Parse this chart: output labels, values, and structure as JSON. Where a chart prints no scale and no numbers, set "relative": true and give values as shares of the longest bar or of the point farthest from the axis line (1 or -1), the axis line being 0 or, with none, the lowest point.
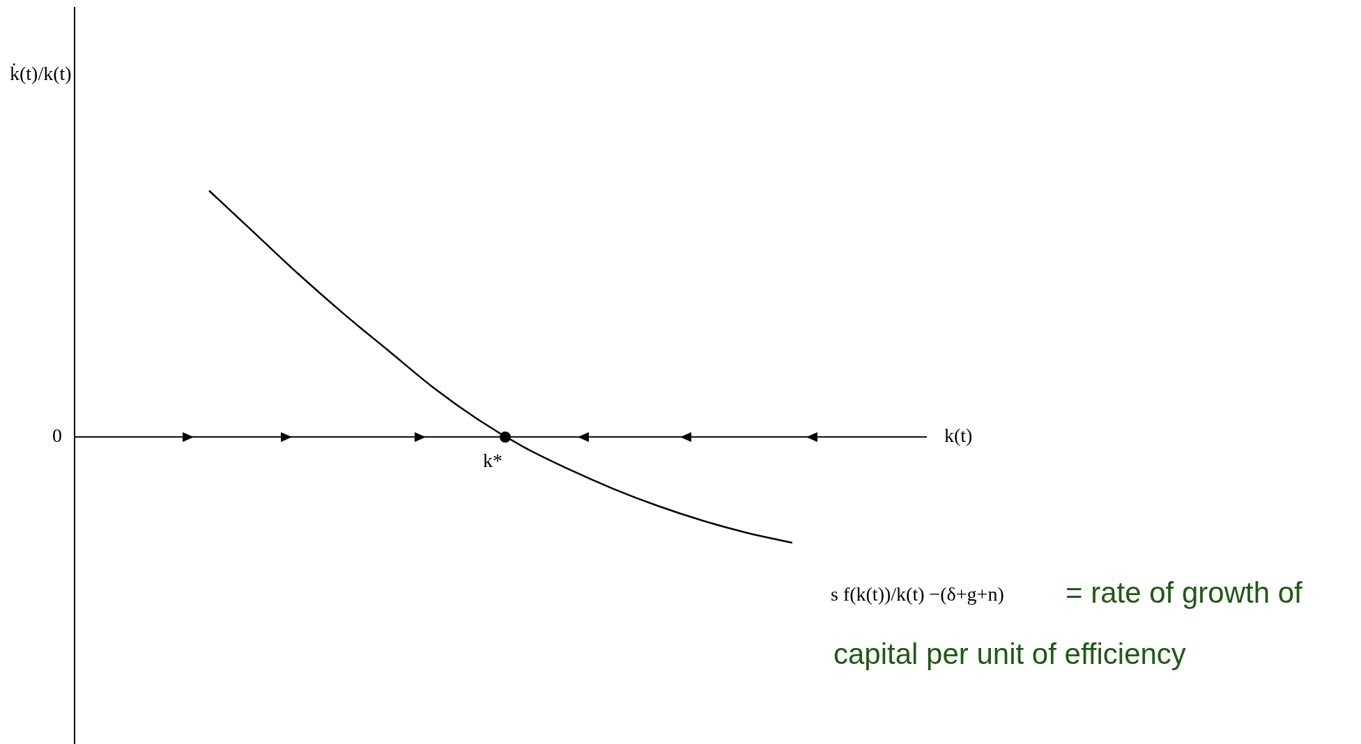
{
  "chart_data": {
    "type": "line",
    "relative": true,
    "xlabel": "k(t)",
    "categories": [
      null,
      null,
      null,
      null,
      null,
      null,
      null,
      null,
      null,
      null,
      null,
      null,
      null,
      null,
      null,
      null,
      null,
      null,
      null,
      null
    ],
    "series": [
      {
        "color": "#000000",
        "values": [
          null,
          null,
          null,
          1,
          0.83,
          0.66,
          0.5,
          0.35,
          0.2,
          0.07,
          -0.04,
          -0.13,
          -0.21,
          -0.28,
          -0.34,
          -0.39,
          -0.43,
          null,
          null,
          null
        ]
      }
    ],
    "annotations": [
      "0",
      "k*",
      "s f(k(t))/k(t) −(δ+g+n)",
      "= rate of growth of capital per unit of efficiency",
      "k̇(t)/k(t)"
    ],
    "marker": "none",
    "line_style": "solid",
    "grid": false,
    "legend": false
  }
}
